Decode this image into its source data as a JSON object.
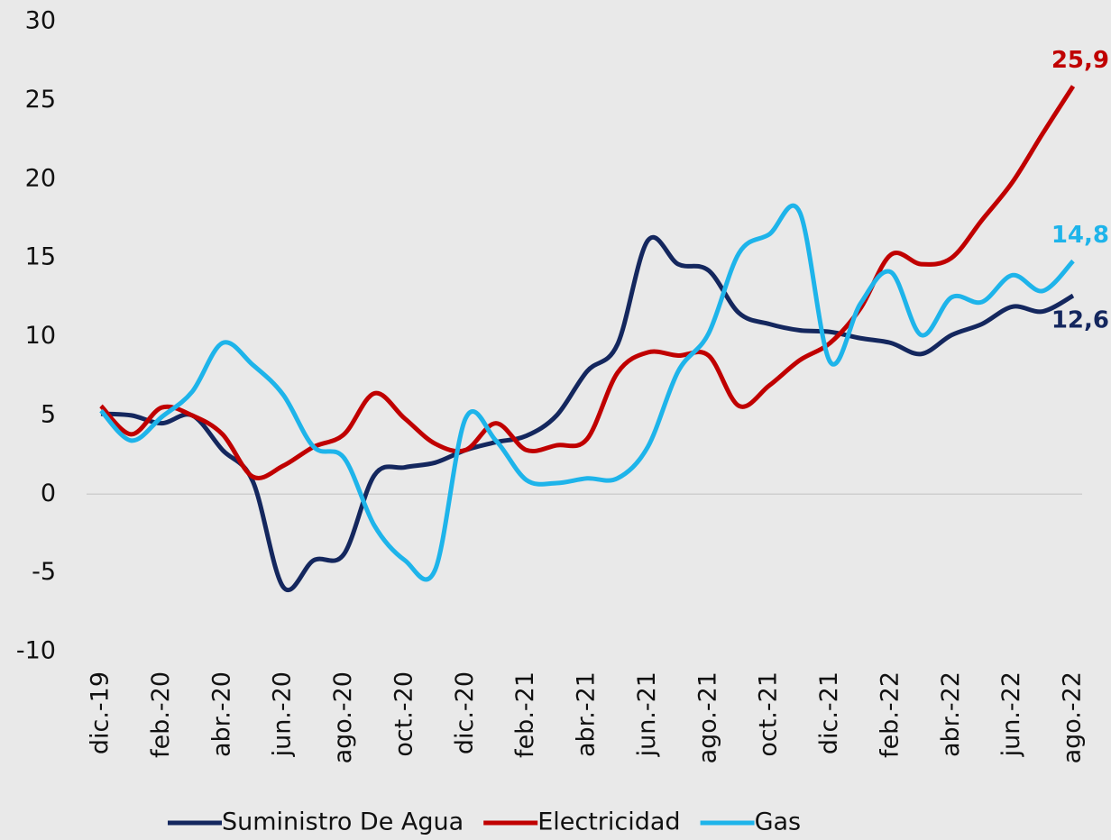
{
  "chart_data": {
    "type": "line",
    "categories": [
      "dic.-19",
      null,
      "feb.-20",
      null,
      "abr.-20",
      null,
      "jun.-20",
      null,
      "ago.-20",
      null,
      "oct.-20",
      null,
      "dic.-20",
      null,
      "feb.-21",
      null,
      "abr.-21",
      null,
      "jun.-21",
      null,
      "ago.-21",
      null,
      "oct.-21",
      null,
      "dic.-21",
      null,
      "feb.-22",
      null,
      "abr.-22",
      null,
      "jun.-22",
      null,
      "ago.-22"
    ],
    "series": [
      {
        "name": "Suministro De Agua",
        "color": "#14275e",
        "values": [
          5.1,
          5.0,
          4.5,
          5.0,
          2.8,
          0.8,
          -5.9,
          -4.2,
          -3.8,
          1.2,
          1.7,
          2.0,
          2.8,
          3.3,
          3.7,
          5.0,
          7.8,
          9.5,
          16.1,
          14.6,
          14.2,
          11.5,
          10.8,
          10.4,
          10.3,
          9.9,
          9.6,
          8.9,
          10.1,
          10.8,
          11.9,
          11.6,
          12.6
        ],
        "value_labels": [
          null,
          null,
          null,
          null,
          null,
          null,
          null,
          null,
          null,
          null,
          null,
          null,
          null,
          null,
          null,
          null,
          null,
          null,
          null,
          null,
          null,
          null,
          null,
          null,
          null,
          null,
          null,
          null,
          null,
          null,
          null,
          null,
          "12,6"
        ]
      },
      {
        "name": "Electricidad",
        "color": "#c00000",
        "values": [
          5.6,
          3.8,
          5.5,
          5.0,
          3.8,
          1.1,
          1.8,
          3.0,
          3.8,
          6.4,
          4.8,
          3.2,
          2.8,
          4.5,
          2.8,
          3.1,
          3.5,
          7.7,
          9.0,
          8.8,
          8.8,
          5.6,
          6.9,
          8.5,
          9.6,
          11.8,
          15.2,
          14.6,
          15.0,
          17.4,
          19.8,
          22.9,
          25.9
        ],
        "value_labels": [
          null,
          null,
          null,
          null,
          null,
          null,
          null,
          null,
          null,
          null,
          null,
          null,
          null,
          null,
          null,
          null,
          null,
          null,
          null,
          null,
          null,
          null,
          null,
          null,
          null,
          null,
          null,
          null,
          null,
          null,
          null,
          null,
          "25,9"
        ]
      },
      {
        "name": "Gas",
        "color": "#1eb4ea",
        "values": [
          5.3,
          3.4,
          4.9,
          6.5,
          9.6,
          8.2,
          6.3,
          3.0,
          2.3,
          -2.0,
          -4.2,
          -4.8,
          4.8,
          3.4,
          0.9,
          0.7,
          1.0,
          1.0,
          3.0,
          7.8,
          10.2,
          15.3,
          16.5,
          17.9,
          8.4,
          12.1,
          14.1,
          10.1,
          12.5,
          12.2,
          13.9,
          12.9,
          14.8
        ],
        "value_labels": [
          null,
          null,
          null,
          null,
          null,
          null,
          null,
          null,
          null,
          null,
          null,
          null,
          null,
          null,
          null,
          null,
          null,
          null,
          null,
          null,
          null,
          null,
          null,
          null,
          null,
          null,
          null,
          null,
          null,
          null,
          null,
          null,
          "14,8"
        ]
      }
    ],
    "ylim": [
      -10,
      30
    ],
    "yticks": [
      -10,
      -5,
      0,
      5,
      10,
      15,
      20,
      25,
      30
    ],
    "legend": "bottom"
  }
}
